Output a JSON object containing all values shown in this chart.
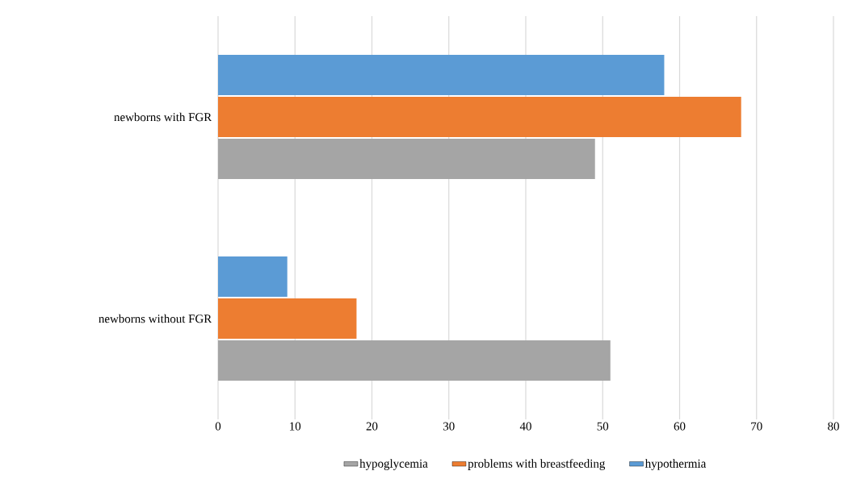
{
  "chart_data": {
    "type": "bar",
    "orientation": "horizontal",
    "categories": [
      "newborns with FGR",
      "newborns without FGR"
    ],
    "series": [
      {
        "name": "hypoglycemia",
        "color": "#a5a5a5",
        "values": [
          49,
          51
        ]
      },
      {
        "name": "problems with breastfeeding",
        "color": "#ed7d31",
        "values": [
          68,
          18
        ]
      },
      {
        "name": "hypothermia",
        "color": "#5b9bd5",
        "values": [
          58,
          9
        ]
      }
    ],
    "xlim": [
      0,
      80
    ],
    "xticks": [
      0,
      10,
      20,
      30,
      40,
      50,
      60,
      70,
      80
    ],
    "grid": "x",
    "legend": "bottom"
  }
}
